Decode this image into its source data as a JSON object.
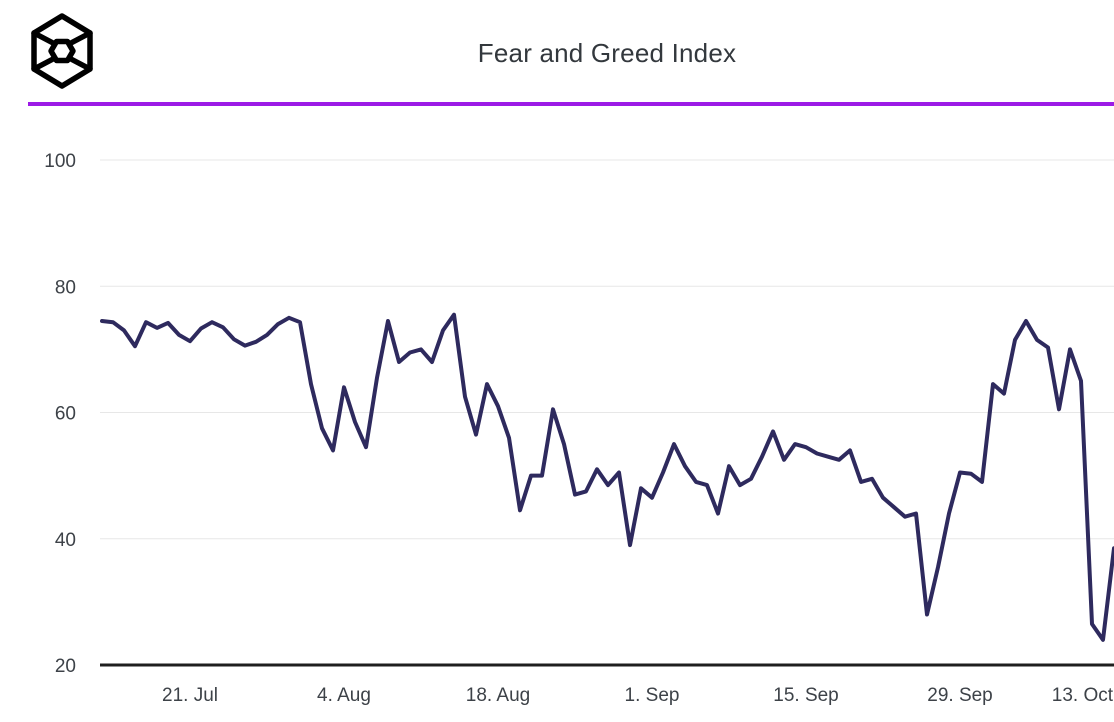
{
  "header": {
    "title": "Fear and Greed Index",
    "logo": "hexagon-cube-logo"
  },
  "colors": {
    "divider": "#9c1ae6",
    "line": "#2e2a5e",
    "gridline": "#e7e7e7",
    "axis": "#1f1f1f",
    "tick_text": "#3d4248",
    "title_text": "#33383d",
    "background": "#ffffff",
    "logo": "#000000"
  },
  "chart_data": {
    "type": "line",
    "title": "Fear and Greed Index",
    "series_name": "Fear and Greed Index",
    "x_unit": "day",
    "x_range_labels": [
      "13. Jul",
      "13. Oct"
    ],
    "x_ticks": [
      {
        "label": "21. Jul",
        "day_index": 8
      },
      {
        "label": "4. Aug",
        "day_index": 22
      },
      {
        "label": "18. Aug",
        "day_index": 36
      },
      {
        "label": "1. Sep",
        "day_index": 50
      },
      {
        "label": "15. Sep",
        "day_index": 64
      },
      {
        "label": "29. Sep",
        "day_index": 78
      },
      {
        "label": "13. Oct",
        "day_index": 92
      }
    ],
    "y_ticks": [
      20,
      40,
      60,
      80,
      100
    ],
    "ylim": [
      20,
      100
    ],
    "grid": "horizontal",
    "legend": "none",
    "values": [
      74.5,
      74.3,
      73,
      70.5,
      74.3,
      73.4,
      74.2,
      72.3,
      71.3,
      73.3,
      74.3,
      73.5,
      71.6,
      70.6,
      71.2,
      72.3,
      74,
      75,
      74.3,
      64.5,
      57.5,
      54,
      64,
      58.5,
      54.5,
      65.5,
      74.5,
      68,
      69.5,
      70,
      68,
      73,
      75.5,
      62.5,
      56.5,
      64.5,
      61,
      56,
      44.5,
      50,
      50,
      60.5,
      55,
      47,
      47.5,
      51,
      48.5,
      50.5,
      39,
      48,
      46.5,
      50.5,
      55,
      51.5,
      49,
      48.5,
      44,
      51.5,
      48.5,
      49.5,
      53,
      57,
      52.5,
      55,
      54.5,
      53.5,
      53,
      52.5,
      54,
      49,
      49.5,
      46.5,
      45,
      43.5,
      44,
      28,
      35.5,
      44,
      50.5,
      50.3,
      49,
      64.5,
      63,
      71.5,
      74.5,
      71.5,
      70.3,
      60.5,
      70,
      65,
      26.5,
      24,
      38.5
    ]
  }
}
